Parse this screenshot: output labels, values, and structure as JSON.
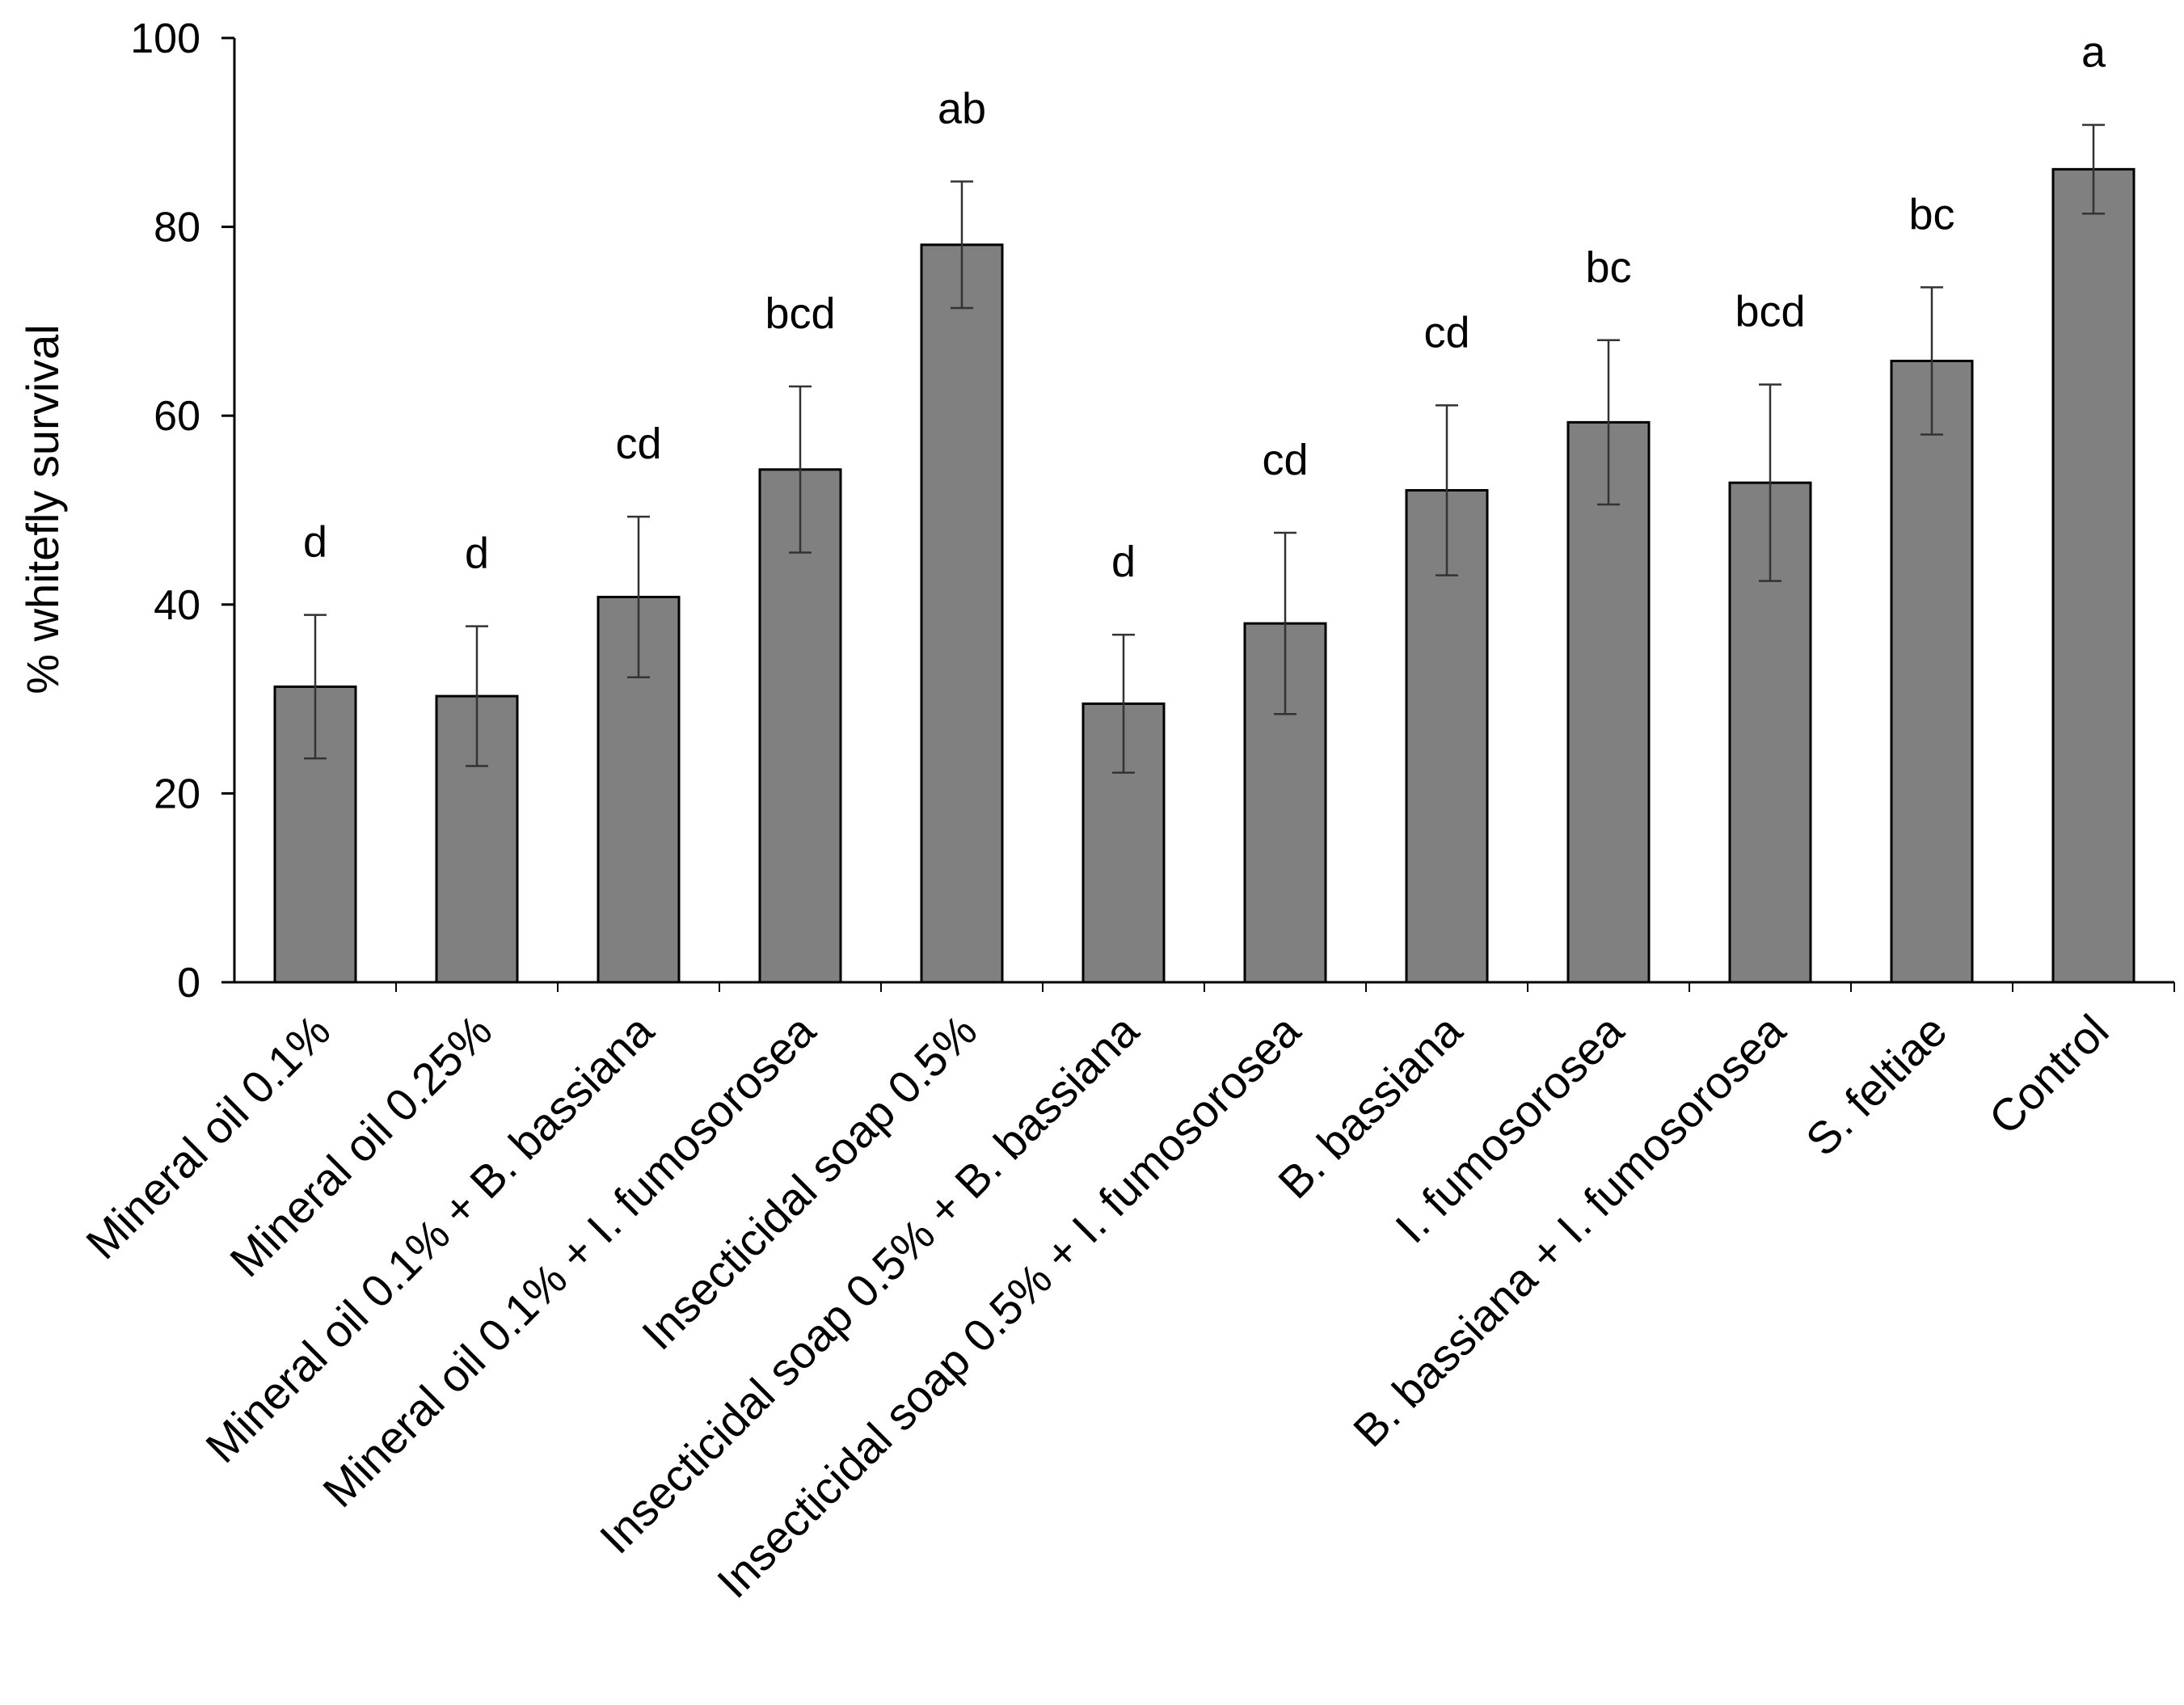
{
  "chart_data": {
    "type": "bar",
    "title": "",
    "xlabel": "",
    "ylabel": "% whitefly survival",
    "ylim": [
      0,
      100
    ],
    "yticks": [
      0,
      20,
      40,
      60,
      80,
      100
    ],
    "grid": false,
    "legend": "none",
    "bar_color": "#808080",
    "categories": [
      "Mineral oil 0.1%",
      "Mineral oil 0.25%",
      "Mineral oil 0.1% + B. bassiana",
      "Mineral oil 0.1% + I. fumosorosea",
      "Insecticidal soap 0.5%",
      "Insecticidal soap 0.5% + B. bassiana",
      "Insecticidal soap 0.5% + I. fumosorosea",
      "B. bassiana",
      "I. fumosorosea",
      "B. bassiana + I. fumosorosea",
      "S. feltiae",
      "Control"
    ],
    "values": [
      31.3,
      30.3,
      40.8,
      54.3,
      78.1,
      29.5,
      38.0,
      52.1,
      59.3,
      52.9,
      65.8,
      86.1
    ],
    "errors": [
      7.6,
      7.4,
      8.5,
      8.8,
      6.7,
      7.3,
      9.6,
      9.0,
      8.7,
      10.4,
      7.8,
      4.7
    ],
    "significance_letters": [
      "d",
      "d",
      "cd",
      "bcd",
      "ab",
      "d",
      "cd",
      "cd",
      "bc",
      "bcd",
      "bc",
      "a"
    ]
  }
}
